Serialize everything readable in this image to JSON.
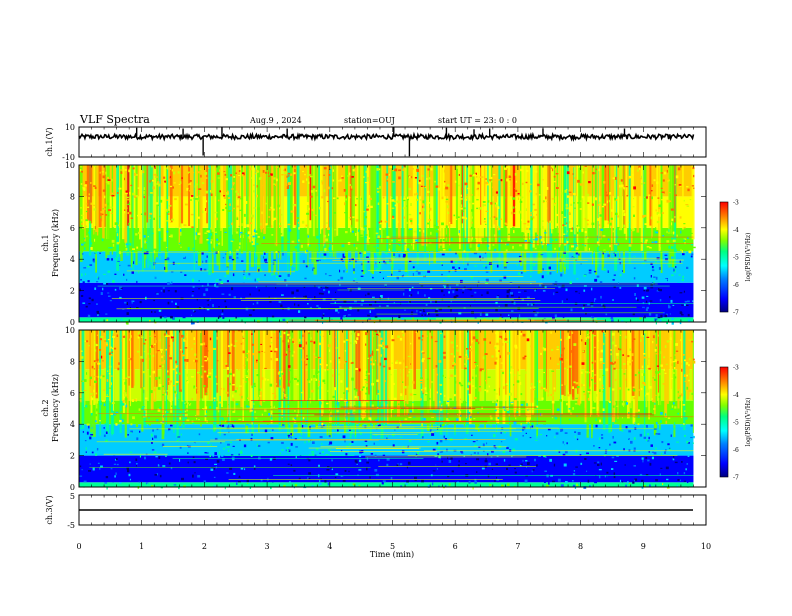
{
  "header": {
    "title": "VLF Spectra",
    "date": "Aug.9 , 2024",
    "station": "station=OUJ",
    "start": "start UT = 23: 0 : 0"
  },
  "colors": {
    "palette": [
      "#00007f",
      "#0000ff",
      "#0066ff",
      "#00ccff",
      "#00ff99",
      "#66ff00",
      "#ccff00",
      "#ffff00",
      "#ffcc00",
      "#ff6600",
      "#ff0000"
    ]
  },
  "chart_data": [
    {
      "id": "ch1-waveform",
      "type": "line",
      "ylabel": "ch.1(V)",
      "ylim": [
        -10,
        10
      ],
      "yticks": [
        "10",
        "-10"
      ],
      "xlim": [
        0,
        10
      ],
      "baseline": 3.5,
      "spikes": [
        {
          "x": 0.92,
          "y": 9.5
        },
        {
          "x": 1.66,
          "y": 9.0
        },
        {
          "x": 1.98,
          "y": -9.0
        },
        {
          "x": 2.28,
          "y": 10.0
        },
        {
          "x": 3.32,
          "y": 9.0
        },
        {
          "x": 5.02,
          "y": 9.8
        },
        {
          "x": 5.27,
          "y": -9.5
        },
        {
          "x": 5.86,
          "y": 9.5
        },
        {
          "x": 6.3,
          "y": 8.5
        },
        {
          "x": 6.55,
          "y": 9.0
        },
        {
          "x": 7.4,
          "y": 9.0
        },
        {
          "x": 8.7,
          "y": 9.0
        }
      ]
    },
    {
      "id": "ch1-spectrogram",
      "type": "heatmap",
      "ylabel_line1": "ch.1",
      "ylabel_line2": "Frequency (kHz)",
      "ylim": [
        0,
        10
      ],
      "yticks": [
        "0",
        "2",
        "4",
        "6",
        "8",
        "10"
      ],
      "xlim": [
        0,
        9.8
      ],
      "colorbar": {
        "label": "log(PSD)(V²/Hz)",
        "range": [
          -7,
          -3
        ],
        "ticks": [
          "-3",
          "-4",
          "-5",
          "-6",
          "-7"
        ]
      },
      "bands": [
        {
          "fmin": 0.0,
          "fmax": 0.3,
          "level": -5.5
        },
        {
          "fmin": 0.3,
          "fmax": 2.5,
          "level": -6.6
        },
        {
          "fmin": 2.5,
          "fmax": 4.5,
          "level": -6.0
        },
        {
          "fmin": 4.5,
          "fmax": 6.0,
          "level": -5.0
        },
        {
          "fmin": 6.0,
          "fmax": 8.0,
          "level": -4.3
        },
        {
          "fmin": 8.0,
          "fmax": 10.0,
          "level": -3.9
        }
      ]
    },
    {
      "id": "ch2-spectrogram",
      "type": "heatmap",
      "ylabel_line1": "ch.2",
      "ylabel_line2": "Frequency (kHz)",
      "ylim": [
        0,
        10
      ],
      "yticks": [
        "0",
        "2",
        "4",
        "6",
        "8",
        "10"
      ],
      "xlim": [
        0,
        9.8
      ],
      "colorbar": {
        "label": "log(PSD)(V²/Hz)",
        "range": [
          -7,
          -3
        ],
        "ticks": [
          "-3",
          "-4",
          "-5",
          "-6",
          "-7"
        ]
      },
      "bands": [
        {
          "fmin": 0.0,
          "fmax": 0.3,
          "level": -5.5
        },
        {
          "fmin": 0.3,
          "fmax": 2.0,
          "level": -6.6
        },
        {
          "fmin": 2.0,
          "fmax": 4.0,
          "level": -6.0
        },
        {
          "fmin": 4.0,
          "fmax": 5.5,
          "level": -5.0
        },
        {
          "fmin": 5.5,
          "fmax": 7.5,
          "level": -4.4
        },
        {
          "fmin": 7.5,
          "fmax": 10.0,
          "level": -3.9
        }
      ]
    },
    {
      "id": "ch3-waveform",
      "type": "line",
      "ylabel": "ch.3(V)",
      "ylim": [
        -5,
        5
      ],
      "yticks": [
        "5",
        "-5"
      ],
      "xlim": [
        0,
        10
      ],
      "baseline": 0
    }
  ],
  "xaxis": {
    "label": "Time (min)",
    "ticks": [
      "0",
      "1",
      "2",
      "3",
      "4",
      "5",
      "6",
      "7",
      "8",
      "9",
      "10"
    ]
  }
}
